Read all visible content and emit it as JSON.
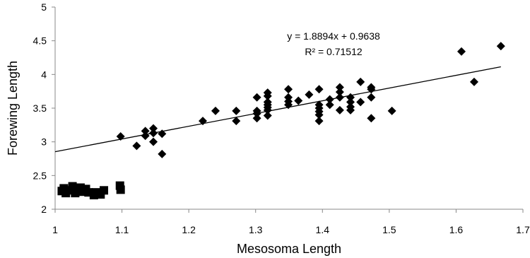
{
  "chart_data": {
    "type": "scatter",
    "title": "",
    "xlabel": "Mesosoma Length",
    "ylabel": "Forewing Length",
    "xlim": [
      1,
      1.7
    ],
    "ylim": [
      2,
      5
    ],
    "xticks": [
      "1",
      "1.1",
      "1.2",
      "1.3",
      "1.4",
      "1.5",
      "1.6",
      "1.7"
    ],
    "yticks": [
      "2",
      "2.5",
      "3",
      "3.5",
      "4",
      "4.5",
      "5"
    ],
    "grid": false,
    "legend": "none",
    "colors": {
      "points": "#000000",
      "trendline": "#000000",
      "axes": "#888888"
    },
    "trendline": {
      "slope": 1.8894,
      "intercept": 0.9638,
      "equation": "y = 1.8894x + 0.9638",
      "r2": "R² = 0.71512"
    },
    "series": [
      {
        "marker": "diamond",
        "points": [
          [
            1.098,
            3.08
          ],
          [
            1.122,
            2.94
          ],
          [
            1.135,
            3.16
          ],
          [
            1.135,
            3.09
          ],
          [
            1.147,
            3.2
          ],
          [
            1.147,
            3.13
          ],
          [
            1.147,
            3.0
          ],
          [
            1.16,
            3.12
          ],
          [
            1.16,
            2.82
          ],
          [
            1.221,
            3.31
          ],
          [
            1.24,
            3.46
          ],
          [
            1.271,
            3.46
          ],
          [
            1.271,
            3.31
          ],
          [
            1.302,
            3.66
          ],
          [
            1.302,
            3.46
          ],
          [
            1.302,
            3.42
          ],
          [
            1.302,
            3.35
          ],
          [
            1.318,
            3.73
          ],
          [
            1.318,
            3.68
          ],
          [
            1.318,
            3.59
          ],
          [
            1.318,
            3.55
          ],
          [
            1.318,
            3.51
          ],
          [
            1.318,
            3.47
          ],
          [
            1.318,
            3.39
          ],
          [
            1.349,
            3.78
          ],
          [
            1.349,
            3.66
          ],
          [
            1.349,
            3.6
          ],
          [
            1.349,
            3.55
          ],
          [
            1.364,
            3.61
          ],
          [
            1.38,
            3.7
          ],
          [
            1.395,
            3.78
          ],
          [
            1.395,
            3.55
          ],
          [
            1.395,
            3.5
          ],
          [
            1.395,
            3.45
          ],
          [
            1.395,
            3.4
          ],
          [
            1.395,
            3.31
          ],
          [
            1.411,
            3.63
          ],
          [
            1.411,
            3.55
          ],
          [
            1.426,
            3.81
          ],
          [
            1.426,
            3.74
          ],
          [
            1.426,
            3.66
          ],
          [
            1.426,
            3.47
          ],
          [
            1.442,
            3.66
          ],
          [
            1.442,
            3.59
          ],
          [
            1.442,
            3.52
          ],
          [
            1.442,
            3.47
          ],
          [
            1.457,
            3.89
          ],
          [
            1.457,
            3.59
          ],
          [
            1.473,
            3.81
          ],
          [
            1.473,
            3.78
          ],
          [
            1.473,
            3.66
          ],
          [
            1.473,
            3.35
          ],
          [
            1.504,
            3.46
          ],
          [
            1.608,
            4.34
          ],
          [
            1.627,
            3.89
          ],
          [
            1.667,
            4.42
          ]
        ]
      },
      {
        "marker": "square",
        "points": [
          [
            1.01,
            2.27
          ],
          [
            1.013,
            2.31
          ],
          [
            1.016,
            2.24
          ],
          [
            1.021,
            2.28
          ],
          [
            1.026,
            2.34
          ],
          [
            1.028,
            2.3
          ],
          [
            1.03,
            2.24
          ],
          [
            1.035,
            2.27
          ],
          [
            1.038,
            2.32
          ],
          [
            1.04,
            2.26
          ],
          [
            1.046,
            2.3
          ],
          [
            1.05,
            2.25
          ],
          [
            1.058,
            2.21
          ],
          [
            1.061,
            2.25
          ],
          [
            1.068,
            2.22
          ],
          [
            1.073,
            2.28
          ],
          [
            1.097,
            2.35
          ],
          [
            1.098,
            2.29
          ]
        ]
      }
    ]
  }
}
